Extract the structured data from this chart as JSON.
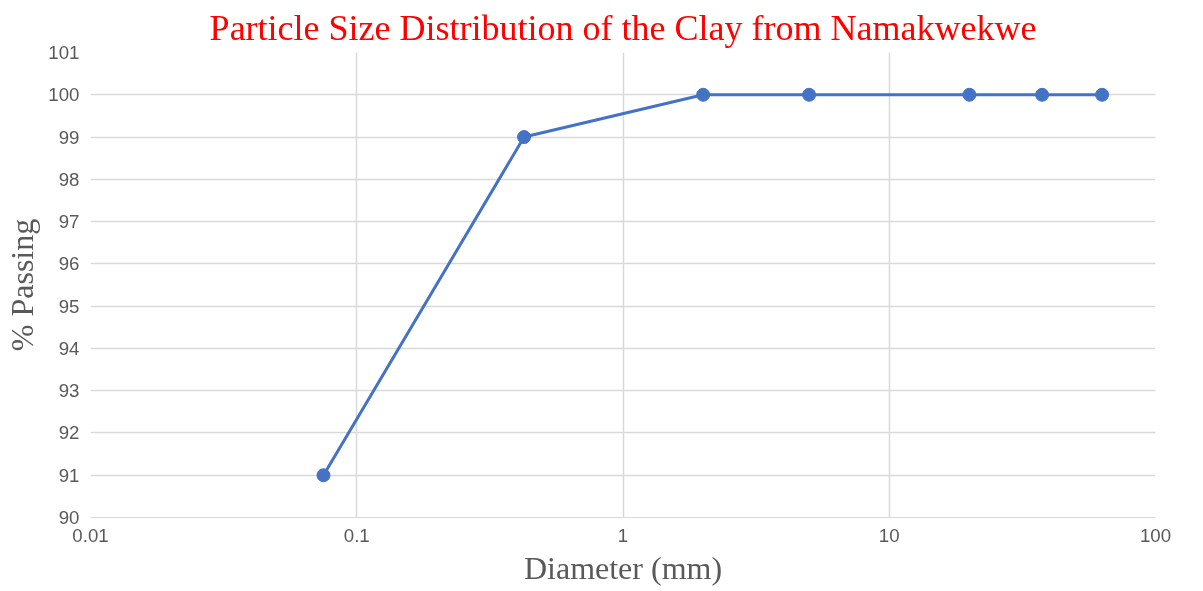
{
  "chart_data": {
    "type": "line",
    "title": "Particle Size Distribution of the Clay from Namakwekwe",
    "xlabel": "Diameter (mm)",
    "ylabel": "% Passing",
    "x": [
      0.075,
      0.425,
      2,
      5,
      20,
      37.5,
      63
    ],
    "series": [
      {
        "color": "#4472c4",
        "values": [
          91,
          99,
          100,
          100,
          100,
          100,
          100
        ]
      }
    ],
    "xlim": [
      0.01,
      100
    ],
    "xticks": [
      0.01,
      0.1,
      1,
      10,
      100
    ],
    "ylim": [
      90,
      101
    ],
    "yticks": [
      90,
      91,
      92,
      93,
      94,
      95,
      96,
      97,
      98,
      99,
      100,
      101
    ],
    "log": "x",
    "grid": true,
    "marker": "circle",
    "line_style": "solid"
  }
}
